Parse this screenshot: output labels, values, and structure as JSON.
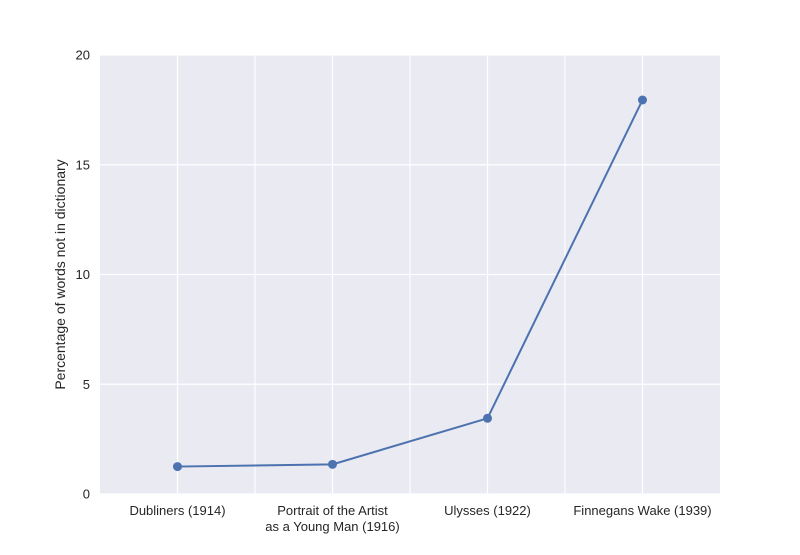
{
  "chart_data": {
    "type": "line",
    "title": "",
    "xlabel": "",
    "ylabel": "Percentage of words not in dictionary",
    "categories": [
      [
        "Dubliners (1914)"
      ],
      [
        "Portrait of the Artist",
        "as a Young Man (1916)"
      ],
      [
        "Ulysses (1922)"
      ],
      [
        "Finnegans Wake (1939)"
      ]
    ],
    "series": [
      {
        "values": [
          1.25,
          1.35,
          3.45,
          17.95
        ],
        "color": "#4c72b0",
        "marker": "circle"
      }
    ],
    "ylim": [
      0,
      20
    ],
    "yticks": [
      0,
      5,
      10,
      15,
      20
    ],
    "grid": true,
    "background_color": "#eaeaf2",
    "grid_color": "#ffffff"
  }
}
